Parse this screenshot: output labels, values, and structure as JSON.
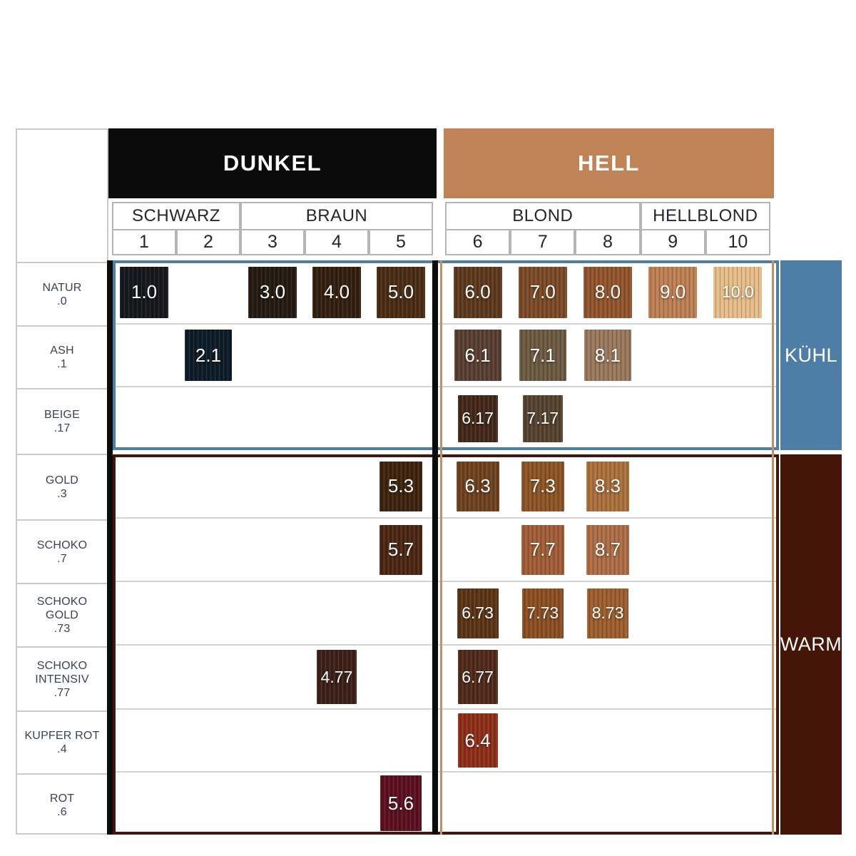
{
  "palette": {
    "dunkel_header_bg": "#0b0b0b",
    "hell_header_bg": "#bf8355",
    "cool_accent": "#4e7da6",
    "warm_accent": "#451509",
    "tan_border": "#bf9166",
    "black_border": "#0b0b0b",
    "grid_border": "#b5b5b5",
    "label_text": "#3a4252",
    "header_text": "#ffffff"
  },
  "headers": {
    "dark": "DUNKEL",
    "light": "HELL"
  },
  "family_groups": [
    {
      "label": "SCHWARZ",
      "from_col": 1,
      "to_col": 2
    },
    {
      "label": "BRAUN",
      "from_col": 3,
      "to_col": 5
    },
    {
      "label": "BLOND",
      "from_col": 6,
      "to_col": 8
    },
    {
      "label": "HELLBLOND",
      "from_col": 9,
      "to_col": 10
    }
  ],
  "columns": [
    "1",
    "2",
    "3",
    "4",
    "5",
    "6",
    "7",
    "8",
    "9",
    "10"
  ],
  "tone_panels": {
    "cool": "KÜHL",
    "warm": "WARM"
  },
  "rows": [
    {
      "name_lines": [
        "NATUR"
      ],
      "code": ".0",
      "tone": "cool",
      "swatches": [
        {
          "col": 1,
          "label": "1.0",
          "color": "#17181d"
        },
        {
          "col": 3,
          "label": "3.0",
          "color": "#251b12"
        },
        {
          "col": 4,
          "label": "4.0",
          "color": "#34200f"
        },
        {
          "col": 5,
          "label": "5.0",
          "color": "#4b2d16"
        },
        {
          "col": 6,
          "label": "6.0",
          "color": "#5d3a1e"
        },
        {
          "col": 7,
          "label": "7.0",
          "color": "#7b4a27"
        },
        {
          "col": 8,
          "label": "8.0",
          "color": "#92552e"
        },
        {
          "col": 9,
          "label": "9.0",
          "color": "#bd7f54"
        },
        {
          "col": 10,
          "label": "10.0",
          "color": "#e5bc8a"
        }
      ]
    },
    {
      "name_lines": [
        "ASH"
      ],
      "code": ".1",
      "tone": "cool",
      "swatches": [
        {
          "col": 2,
          "label": "2.1",
          "color": "#0e1c2a"
        },
        {
          "col": 6,
          "label": "6.1",
          "color": "#5a4033"
        },
        {
          "col": 7,
          "label": "7.1",
          "color": "#6c5a42"
        },
        {
          "col": 8,
          "label": "8.1",
          "color": "#9a785c"
        }
      ]
    },
    {
      "name_lines": [
        "BEIGE"
      ],
      "code": ".17",
      "tone": "cool",
      "swatches": [
        {
          "col": 6,
          "label": "6.17",
          "color": "#44291a"
        },
        {
          "col": 7,
          "label": "7.17",
          "color": "#564330"
        }
      ]
    },
    {
      "name_lines": [
        "GOLD"
      ],
      "code": ".3",
      "tone": "warm",
      "swatches": [
        {
          "col": 5,
          "label": "5.3",
          "color": "#3f2410"
        },
        {
          "col": 6,
          "label": "6.3",
          "color": "#70421f"
        },
        {
          "col": 7,
          "label": "7.3",
          "color": "#8d5526"
        },
        {
          "col": 8,
          "label": "8.3",
          "color": "#aa713c"
        }
      ]
    },
    {
      "name_lines": [
        "SCHOKO"
      ],
      "code": ".7",
      "tone": "warm",
      "swatches": [
        {
          "col": 5,
          "label": "5.7",
          "color": "#4d2715"
        },
        {
          "col": 7,
          "label": "7.7",
          "color": "#a25e38"
        },
        {
          "col": 8,
          "label": "8.7",
          "color": "#ad6d46"
        }
      ]
    },
    {
      "name_lines": [
        "SCHOKO",
        "GOLD"
      ],
      "code": ".73",
      "tone": "warm",
      "swatches": [
        {
          "col": 6,
          "label": "6.73",
          "color": "#5c3517"
        },
        {
          "col": 7,
          "label": "7.73",
          "color": "#8c4f24"
        },
        {
          "col": 8,
          "label": "8.73",
          "color": "#9e5e2e"
        }
      ]
    },
    {
      "name_lines": [
        "SCHOKO",
        "INTENSIV"
      ],
      "code": ".77",
      "tone": "warm",
      "swatches": [
        {
          "col": 4,
          "label": "4.77",
          "color": "#3d2118"
        },
        {
          "col": 6,
          "label": "6.77",
          "color": "#512a1c"
        }
      ]
    },
    {
      "name_lines": [
        "KUPFER ROT"
      ],
      "code": ".4",
      "tone": "warm",
      "swatches": [
        {
          "col": 6,
          "label": "6.4",
          "color": "#8e2f1a"
        }
      ]
    },
    {
      "name_lines": [
        "ROT"
      ],
      "code": ".6",
      "tone": "warm",
      "swatches": [
        {
          "col": 5,
          "label": "5.6",
          "color": "#5d1120"
        }
      ]
    }
  ]
}
